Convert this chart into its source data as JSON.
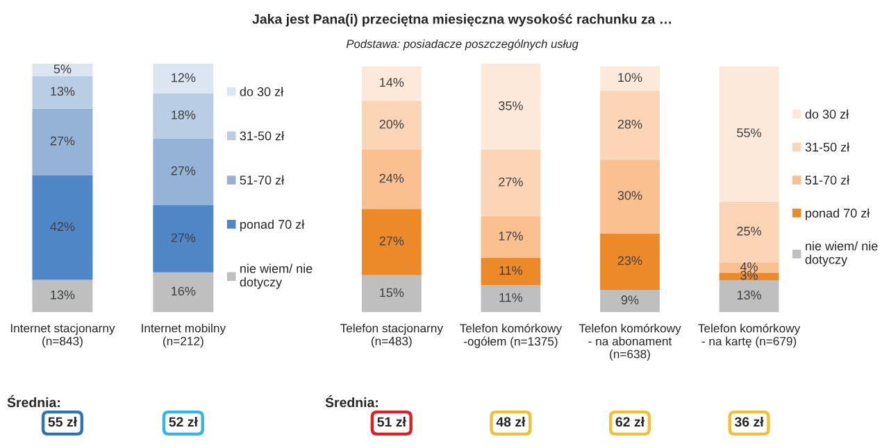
{
  "chart_data": [
    {
      "type": "bar",
      "stacked": true,
      "legend": "right",
      "grid": false,
      "tick_labels": "x",
      "categories": [
        "Internet stacjonarny\n(n=843)",
        "Internet mobilny\n(n=212)"
      ],
      "series": [
        {
          "name": "nie wiem/ nie\ndotyczy",
          "color": "#bfbfbf",
          "values": [
            13,
            16
          ],
          "value_labels": [
            "13%",
            "16%"
          ]
        },
        {
          "name": "ponad 70 zł",
          "color": "#4f86c6",
          "values": [
            42,
            27
          ],
          "value_labels": [
            "42%",
            "27%"
          ]
        },
        {
          "name": "51-70 zł",
          "color": "#95b3d7",
          "values": [
            27,
            27
          ],
          "value_labels": [
            "27%",
            "27%"
          ]
        },
        {
          "name": "31-50 zł",
          "color": "#b9cde5",
          "values": [
            13,
            18
          ],
          "value_labels": [
            "13%",
            "18%"
          ]
        },
        {
          "name": "do 30 zł",
          "color": "#dce6f2",
          "values": [
            5,
            12
          ],
          "value_labels": [
            "5%",
            "12%"
          ]
        }
      ],
      "annotations": [
        "Średnia:",
        "55 zł",
        "52 zł"
      ]
    },
    {
      "type": "bar",
      "title": "Jaka jest Pana(i) przeciętna miesięczna wysokość rachunku za …",
      "subtitle": "Podstawa: posiadacze poszczególnych usług",
      "stacked": true,
      "legend": "right",
      "grid": false,
      "tick_labels": "x",
      "categories": [
        "Telefon stacjonarny\n(n=483)",
        "Telefon komórkowy\n-ogółem (n=1375)",
        "Telefon komórkowy\n- na abonament\n(n=638)",
        "Telefon komórkowy\n- na kartę (n=679)"
      ],
      "series": [
        {
          "name": "nie wiem/ nie\ndotyczy",
          "color": "#bfbfbf",
          "values": [
            15,
            11,
            9,
            13
          ],
          "value_labels": [
            "15%",
            "11%",
            "9%",
            "13%"
          ]
        },
        {
          "name": "ponad 70 zł",
          "color": "#ec8a2a",
          "values": [
            27,
            11,
            23,
            3
          ],
          "value_labels": [
            "27%",
            "11%",
            "23%",
            "3%"
          ]
        },
        {
          "name": "51-70 zł",
          "color": "#fac090",
          "values": [
            24,
            17,
            30,
            4
          ],
          "value_labels": [
            "24%",
            "17%",
            "30%",
            "4%"
          ]
        },
        {
          "name": "31-50 zł",
          "color": "#fbd5b5",
          "values": [
            20,
            27,
            28,
            25
          ],
          "value_labels": [
            "20%",
            "27%",
            "28%",
            "25%"
          ]
        },
        {
          "name": "do 30 zł",
          "color": "#fde9d9",
          "values": [
            14,
            35,
            10,
            55
          ],
          "value_labels": [
            "14%",
            "35%",
            "10%",
            "55%"
          ]
        }
      ],
      "annotations": [
        "Średnia:",
        "51 zł",
        "48 zł",
        "62 zł",
        "36 zł"
      ]
    }
  ]
}
